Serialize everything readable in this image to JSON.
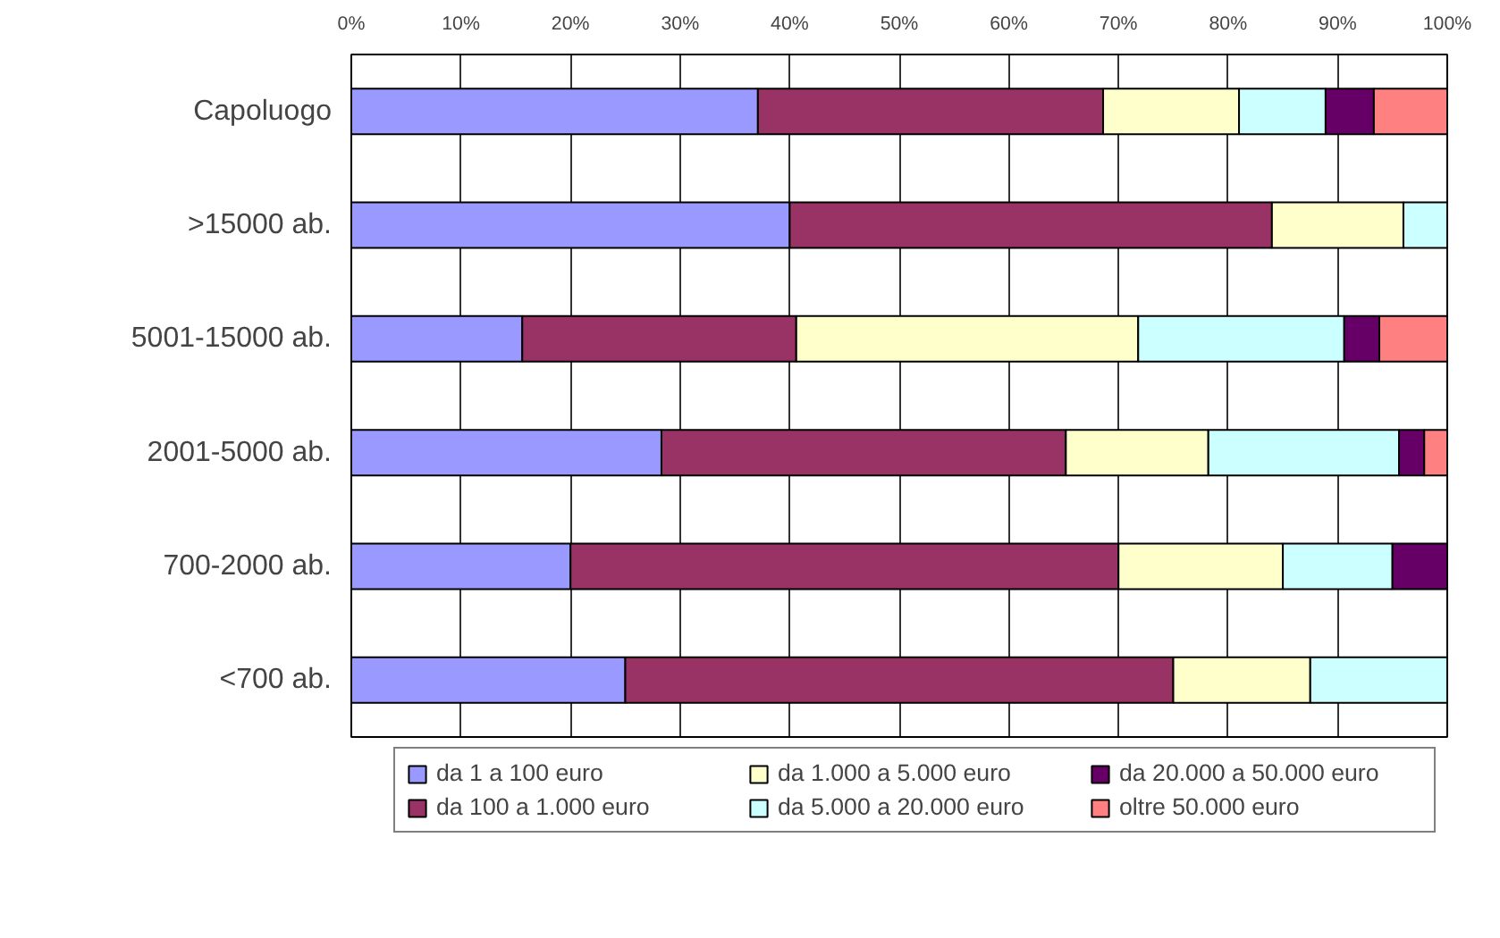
{
  "chart_data": {
    "type": "bar",
    "orientation": "horizontal",
    "stacked": true,
    "categories": [
      "Capoluogo",
      ">15000 ab.",
      "5001-15000 ab.",
      "2001-5000 ab.",
      "700-2000 ab.",
      "<700 ab."
    ],
    "series": [
      {
        "name": "da 1 a 100 euro",
        "color": "#9999ff",
        "values": [
          37.1,
          40,
          15.6,
          28.3,
          20,
          25
        ]
      },
      {
        "name": "da 100 a 1.000 euro",
        "color": "#993366",
        "values": [
          31.5,
          44,
          25,
          36.9,
          50,
          50
        ]
      },
      {
        "name": "da 1.000 a 5.000 euro",
        "color": "#ffffcc",
        "values": [
          12.4,
          12,
          31.2,
          13,
          15,
          12.5
        ]
      },
      {
        "name": "da 5.000 a 20.000 euro",
        "color": "#ccffff",
        "values": [
          7.9,
          4,
          18.8,
          17.4,
          10,
          12.5
        ]
      },
      {
        "name": "da 20.000 a 50.000 euro",
        "color": "#660066",
        "values": [
          4.4,
          null,
          3.2,
          2.3,
          5,
          null
        ]
      },
      {
        "name": "oltre 50.000 euro",
        "color": "#ff8080",
        "values": [
          6.7,
          null,
          6.2,
          2.1,
          null,
          null
        ]
      }
    ],
    "xlim": [
      0,
      100
    ],
    "xticks": [
      {
        "value": 0,
        "label": "0%"
      },
      {
        "value": 10,
        "label": "10%"
      },
      {
        "value": 20,
        "label": "20%"
      },
      {
        "value": 30,
        "label": "30%"
      },
      {
        "value": 40,
        "label": "40%"
      },
      {
        "value": 50,
        "label": "50%"
      },
      {
        "value": 60,
        "label": "60%"
      },
      {
        "value": 70,
        "label": "70%"
      },
      {
        "value": 80,
        "label": "80%"
      },
      {
        "value": 90,
        "label": "90%"
      },
      {
        "value": 100,
        "label": "100%"
      }
    ],
    "grid": "x",
    "legend": "bottom"
  }
}
